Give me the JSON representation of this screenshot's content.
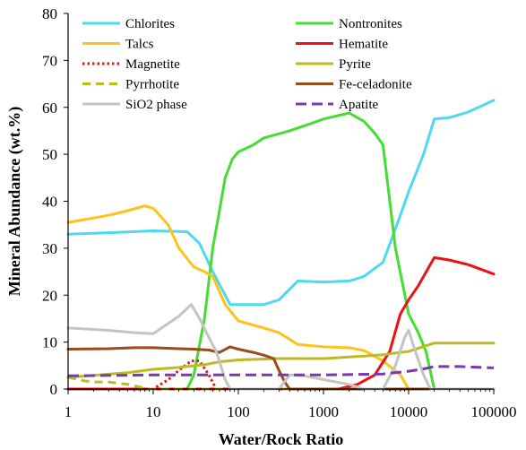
{
  "chart_data": {
    "type": "line",
    "title": "",
    "xlabel": "Water/Rock Ratio",
    "ylabel": "Mineral Abundance (wt.%)",
    "x_scale": "log",
    "xlim": [
      1,
      100000
    ],
    "ylim": [
      0,
      80
    ],
    "x_ticks": [
      1,
      10,
      100,
      1000,
      10000,
      100000
    ],
    "x_tick_labels": [
      "1",
      "10",
      "100",
      "1000",
      "10000",
      "100000"
    ],
    "y_ticks": [
      0,
      10,
      20,
      30,
      40,
      50,
      60,
      70,
      80
    ],
    "y_tick_labels": [
      "0",
      "10",
      "20",
      "30",
      "40",
      "50",
      "60",
      "70",
      "80"
    ],
    "grid": false,
    "legend_position": "top",
    "series": [
      {
        "name": "Chlorites",
        "color": "#4dd9f0",
        "dash": "solid",
        "points": [
          [
            1,
            33
          ],
          [
            3,
            33.3
          ],
          [
            10,
            33.7
          ],
          [
            25,
            33.5
          ],
          [
            35,
            31
          ],
          [
            50,
            25
          ],
          [
            80,
            18
          ],
          [
            200,
            18
          ],
          [
            300,
            19
          ],
          [
            500,
            23
          ],
          [
            1000,
            22.8
          ],
          [
            2000,
            23
          ],
          [
            3000,
            24
          ],
          [
            5000,
            27
          ],
          [
            8000,
            37
          ],
          [
            10000,
            42
          ],
          [
            15000,
            50
          ],
          [
            20000,
            57.5
          ],
          [
            30000,
            57.8
          ],
          [
            50000,
            59
          ],
          [
            100000,
            61.5
          ]
        ]
      },
      {
        "name": "Nontronites",
        "color": "#44dd33",
        "dash": "solid",
        "points": [
          [
            1,
            0
          ],
          [
            25,
            0
          ],
          [
            30,
            3
          ],
          [
            40,
            15
          ],
          [
            50,
            30
          ],
          [
            60,
            38
          ],
          [
            70,
            45
          ],
          [
            85,
            49
          ],
          [
            100,
            50.5
          ],
          [
            150,
            52
          ],
          [
            200,
            53.5
          ],
          [
            400,
            55
          ],
          [
            700,
            56.5
          ],
          [
            1000,
            57.5
          ],
          [
            2000,
            58.8
          ],
          [
            3000,
            57
          ],
          [
            4000,
            54.5
          ],
          [
            5000,
            52
          ],
          [
            7000,
            30
          ],
          [
            10000,
            16
          ],
          [
            13000,
            12
          ],
          [
            16000,
            8
          ],
          [
            20000,
            0
          ],
          [
            100000,
            0
          ]
        ]
      },
      {
        "name": "Talcs",
        "color": "#ffc21a",
        "dash": "solid",
        "points": [
          [
            1,
            35.5
          ],
          [
            3,
            37
          ],
          [
            5,
            38
          ],
          [
            8,
            39
          ],
          [
            10,
            38.5
          ],
          [
            15,
            35
          ],
          [
            20,
            30
          ],
          [
            30,
            26
          ],
          [
            40,
            25
          ],
          [
            50,
            24
          ],
          [
            70,
            18
          ],
          [
            100,
            14.5
          ],
          [
            200,
            13
          ],
          [
            300,
            12
          ],
          [
            500,
            9.5
          ],
          [
            1000,
            9
          ],
          [
            2000,
            8.8
          ],
          [
            3000,
            8.2
          ],
          [
            5000,
            6
          ],
          [
            8000,
            3
          ],
          [
            10000,
            0
          ],
          [
            100000,
            0
          ]
        ]
      },
      {
        "name": "Hematite",
        "color": "#ee1111",
        "dash": "solid",
        "points": [
          [
            1,
            0
          ],
          [
            1500,
            0
          ],
          [
            2500,
            1
          ],
          [
            4000,
            3
          ],
          [
            6000,
            8
          ],
          [
            8000,
            16
          ],
          [
            10000,
            19
          ],
          [
            13000,
            22
          ],
          [
            20000,
            28
          ],
          [
            30000,
            27.5
          ],
          [
            50000,
            26.5
          ],
          [
            100000,
            24.5
          ]
        ]
      },
      {
        "name": "Magnetite",
        "color": "#ee1111",
        "dash": "dotted",
        "points": [
          [
            1,
            0
          ],
          [
            10,
            0
          ],
          [
            15,
            2
          ],
          [
            20,
            4
          ],
          [
            28,
            6
          ],
          [
            35,
            6
          ],
          [
            45,
            3
          ],
          [
            55,
            0
          ],
          [
            100000,
            0
          ]
        ]
      },
      {
        "name": "Pyrite",
        "color": "#bbbb22",
        "dash": "solid",
        "points": [
          [
            1,
            2.5
          ],
          [
            5,
            3.5
          ],
          [
            10,
            4.2
          ],
          [
            20,
            4.6
          ],
          [
            40,
            5.2
          ],
          [
            60,
            5.8
          ],
          [
            100,
            6.2
          ],
          [
            300,
            6.5
          ],
          [
            1000,
            6.5
          ],
          [
            3000,
            7
          ],
          [
            5000,
            7.3
          ],
          [
            8000,
            7.8
          ],
          [
            10000,
            8
          ],
          [
            20000,
            9.8
          ],
          [
            50000,
            9.8
          ],
          [
            100000,
            9.8
          ]
        ]
      },
      {
        "name": "Pyrrhotite",
        "color": "#bbbb22",
        "dash": "dashed",
        "points": [
          [
            1,
            2.5
          ],
          [
            1.5,
            1.8
          ],
          [
            2,
            1.5
          ],
          [
            3,
            1.5
          ],
          [
            5,
            1
          ],
          [
            7,
            0.4
          ],
          [
            9,
            0
          ],
          [
            100000,
            0
          ]
        ]
      },
      {
        "name": "Fe-celadonite",
        "color": "#9b4a1a",
        "dash": "solid",
        "points": [
          [
            1,
            8.5
          ],
          [
            3,
            8.6
          ],
          [
            6,
            8.8
          ],
          [
            10,
            8.8
          ],
          [
            20,
            8.6
          ],
          [
            30,
            8.5
          ],
          [
            45,
            8.3
          ],
          [
            60,
            7.8
          ],
          [
            80,
            9
          ],
          [
            100,
            8.5
          ],
          [
            150,
            7.8
          ],
          [
            200,
            7.2
          ],
          [
            260,
            6.5
          ],
          [
            300,
            4
          ],
          [
            350,
            1.5
          ],
          [
            400,
            0
          ],
          [
            100000,
            0
          ]
        ]
      },
      {
        "name": "SiO2 phase",
        "color": "#c4c4c4",
        "dash": "solid",
        "points": [
          [
            1,
            13
          ],
          [
            3,
            12.5
          ],
          [
            6,
            12
          ],
          [
            10,
            11.8
          ],
          [
            20,
            15.5
          ],
          [
            28,
            18
          ],
          [
            35,
            15
          ],
          [
            45,
            11
          ],
          [
            55,
            8
          ],
          [
            70,
            2
          ],
          [
            80,
            0
          ],
          [
            300,
            0
          ],
          [
            400,
            3
          ],
          [
            600,
            2.8
          ],
          [
            1000,
            2
          ],
          [
            2000,
            1
          ],
          [
            3000,
            0
          ],
          [
            5000,
            0
          ],
          [
            7000,
            5
          ],
          [
            9000,
            11
          ],
          [
            10000,
            12.5
          ],
          [
            12000,
            8
          ],
          [
            15000,
            3
          ],
          [
            18000,
            0
          ],
          [
            100000,
            0
          ]
        ]
      },
      {
        "name": "Apatite",
        "color": "#7a3aaa",
        "dash": "longdash",
        "points": [
          [
            1,
            2.8
          ],
          [
            3,
            2.9
          ],
          [
            10,
            3
          ],
          [
            100,
            3
          ],
          [
            1000,
            3
          ],
          [
            5000,
            3.2
          ],
          [
            10000,
            3.8
          ],
          [
            15000,
            4.3
          ],
          [
            20000,
            4.8
          ],
          [
            40000,
            4.8
          ],
          [
            100000,
            4.5
          ]
        ]
      }
    ]
  }
}
